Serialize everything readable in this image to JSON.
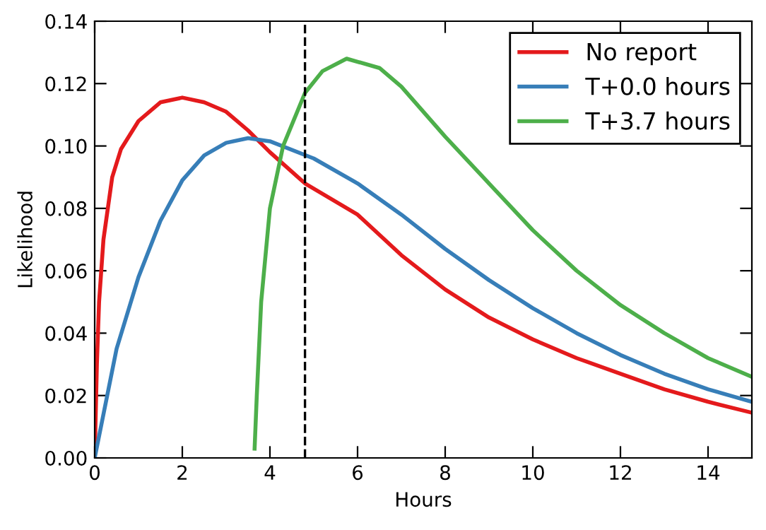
{
  "chart_data": {
    "type": "line",
    "xlabel": "Hours",
    "ylabel": "Likelihood",
    "xlim": [
      0,
      15
    ],
    "ylim": [
      0,
      0.14
    ],
    "xticks": [
      0,
      2,
      4,
      6,
      8,
      10,
      12,
      14
    ],
    "yticks": [
      {
        "value": 0,
        "label": "0.00"
      },
      {
        "value": 0.02,
        "label": "0.02"
      },
      {
        "value": 0.04,
        "label": "0.04"
      },
      {
        "value": 0.06,
        "label": "0.06"
      },
      {
        "value": 0.08,
        "label": "0.08"
      },
      {
        "value": 0.1,
        "label": "0.10"
      },
      {
        "value": 0.12,
        "label": "0.12"
      },
      {
        "value": 0.14,
        "label": "0.14"
      }
    ],
    "grid": false,
    "legend": "top right",
    "marker": "none",
    "line_style": "solid",
    "ref_lines": [
      {
        "axis": "x",
        "value": 4.8,
        "color": "#000000",
        "line_style": "dashed"
      }
    ],
    "series": [
      {
        "name": "No report",
        "color": "#e41a1c",
        "x": [
          0,
          0.05,
          0.1,
          0.2,
          0.4,
          0.6,
          1,
          1.5,
          2,
          2.5,
          3,
          3.5,
          4,
          4.8,
          6,
          7,
          8,
          9,
          10,
          11,
          12,
          13,
          14,
          15
        ],
        "values": [
          0,
          0.03,
          0.05,
          0.07,
          0.09,
          0.099,
          0.108,
          0.114,
          0.1155,
          0.114,
          0.111,
          0.105,
          0.098,
          0.088,
          0.078,
          0.065,
          0.054,
          0.045,
          0.038,
          0.032,
          0.027,
          0.022,
          0.018,
          0.0145
        ]
      },
      {
        "name": "T+0.0 hours",
        "color": "#377eb8",
        "x": [
          0,
          0.5,
          1,
          1.5,
          2,
          2.5,
          3,
          3.5,
          4,
          5,
          6,
          7,
          8,
          9,
          10,
          11,
          12,
          13,
          14,
          15
        ],
        "values": [
          0,
          0.035,
          0.058,
          0.076,
          0.089,
          0.097,
          0.101,
          0.1025,
          0.1015,
          0.096,
          0.088,
          0.078,
          0.067,
          0.057,
          0.048,
          0.04,
          0.033,
          0.027,
          0.022,
          0.018
        ]
      },
      {
        "name": "T+3.7 hours",
        "color": "#4daf4a",
        "x": [
          3.65,
          3.7,
          3.8,
          4.0,
          4.3,
          4.8,
          5.2,
          5.75,
          6.5,
          7,
          8,
          9,
          10,
          11,
          12,
          13,
          14,
          15
        ],
        "values": [
          0.003,
          0.02,
          0.05,
          0.08,
          0.1,
          0.117,
          0.124,
          0.128,
          0.125,
          0.119,
          0.103,
          0.088,
          0.073,
          0.06,
          0.049,
          0.04,
          0.032,
          0.026
        ]
      }
    ]
  }
}
